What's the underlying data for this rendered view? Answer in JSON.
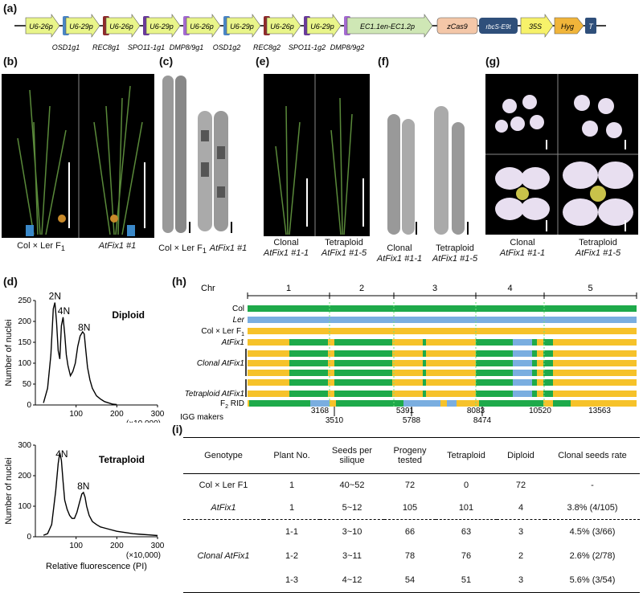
{
  "panel_labels": {
    "a": "(a)",
    "b": "(b)",
    "c": "(c)",
    "d": "(d)",
    "e": "(e)",
    "f": "(f)",
    "g": "(g)",
    "h": "(h)",
    "i": "(i)"
  },
  "construct": {
    "promoters": [
      "U6-26p",
      "U6-29p",
      "U6-26p",
      "U6-29p",
      "U6-26p",
      "U6-29p",
      "U6-26p",
      "U6-29p"
    ],
    "guides": [
      "OSD1g1",
      "REC8g1",
      "SPO11-1g1",
      "DMP8/9g1",
      "OSD1g2",
      "REC8g2",
      "SPO11-1g2",
      "DMP8/9g2"
    ],
    "ec_promoter": "EC1.1en-EC1.2p",
    "zcas9": "zCas9",
    "rbcs": "rbcS-E9t",
    "p35s": "35S",
    "hyg": "Hyg",
    "t": "T",
    "colors": {
      "promoter": "#e9f58a",
      "osd1": "#4a86c5",
      "rec8": "#8e2b2b",
      "spo11": "#6a3a9a",
      "dmp": "#a46ad0",
      "ec": "#cfe7b5",
      "zcas9": "#f4c7a8",
      "rbcs": "#2f4f7a",
      "p35s": "#f7f26a",
      "hyg": "#f1b53a",
      "t": "#2f4f7a"
    }
  },
  "b_caption": {
    "line1": "Col × Ler F",
    "sub": "1",
    "right": "AtFix1 #1"
  },
  "c_caption": {
    "left": "Col × Ler F",
    "sub": "1",
    "right": "AtFix1 #1"
  },
  "e_caption": {
    "left1": "Clonal",
    "left2": "AtFix1 #1-1",
    "right1": "Tetraploid",
    "right2": "AtFix1 #1-5"
  },
  "f_caption": {
    "left1": "Clonal",
    "left2": "AtFix1 #1-1",
    "right1": "Tetraploid",
    "right2": "AtFix1 #1-5"
  },
  "g_caption": {
    "left1": "Clonal",
    "left2": "AtFix1 #1-1",
    "right1": "Tetraploid",
    "right2": "AtFix1 #1-5"
  },
  "chart_data": [
    {
      "type": "line",
      "title": "Diploid",
      "xlabel": "Relative fluorescence (PI)",
      "ylabel": "Number of nuclei",
      "xlim": [
        0,
        300
      ],
      "ylim": [
        0,
        250
      ],
      "x_unit": "(×10,000)",
      "xticks": [
        100,
        200,
        300
      ],
      "yticks": [
        0,
        50,
        100,
        150,
        200,
        250
      ],
      "annotations": [
        {
          "text": "2N",
          "x": 48
        },
        {
          "text": "4N",
          "x": 70
        },
        {
          "text": "8N",
          "x": 120
        }
      ],
      "x": [
        20,
        30,
        38,
        44,
        48,
        52,
        56,
        60,
        64,
        68,
        72,
        76,
        80,
        86,
        92,
        98,
        104,
        110,
        116,
        120,
        124,
        128,
        134,
        140,
        150,
        160,
        170,
        180,
        190,
        200
      ],
      "y": [
        5,
        40,
        120,
        230,
        245,
        200,
        130,
        110,
        190,
        210,
        170,
        120,
        95,
        70,
        80,
        100,
        140,
        165,
        175,
        170,
        130,
        90,
        60,
        40,
        22,
        14,
        8,
        5,
        2,
        1
      ]
    },
    {
      "type": "line",
      "title": "Tetraploid",
      "xlabel": "Relative fluorescence (PI)",
      "ylabel": "Number of nuclei",
      "xlim": [
        0,
        300
      ],
      "ylim": [
        0,
        300
      ],
      "x_unit": "(×10,000)",
      "xticks": [
        100,
        200,
        300
      ],
      "yticks": [
        0,
        100,
        200,
        300
      ],
      "annotations": [
        {
          "text": "4N",
          "x": 65
        },
        {
          "text": "8N",
          "x": 118
        }
      ],
      "x": [
        20,
        30,
        40,
        50,
        56,
        60,
        64,
        68,
        72,
        78,
        84,
        90,
        96,
        102,
        108,
        114,
        118,
        122,
        126,
        132,
        140,
        150,
        160,
        180,
        200,
        220,
        240,
        260,
        280,
        300
      ],
      "y": [
        5,
        10,
        40,
        150,
        240,
        275,
        250,
        180,
        120,
        90,
        70,
        60,
        60,
        80,
        110,
        140,
        145,
        130,
        100,
        70,
        50,
        40,
        32,
        25,
        18,
        14,
        10,
        8,
        6,
        4
      ]
    }
  ],
  "h_panel": {
    "chr_label": "Chr",
    "chromosomes": [
      "1",
      "2",
      "3",
      "4",
      "5"
    ],
    "rows": [
      "Col",
      "Ler",
      "Col × Ler F1",
      "AtFix1",
      "Clonal AtFix1",
      "Tetraploid AtFix1",
      "F2 RID"
    ],
    "row_labels": {
      "col": "Col",
      "ler": "Ler",
      "f1": "Col × Ler F",
      "f1_sub": "1",
      "atfix1": "AtFix1",
      "clonal": "Clonal AtFix1",
      "tetra": "Tetraploid AtFix1",
      "f2": "F",
      "f2_sub": "2",
      "f2_rest": " RID",
      "igg": "IGG makers"
    },
    "igg_markers": [
      "3168",
      "3510",
      "5391",
      "5788",
      "8083",
      "8474",
      "10520",
      "13563"
    ],
    "colors": {
      "col": "#1eaa4a",
      "ler": "#7aaee0",
      "het": "#f6c22a"
    }
  },
  "table_i": {
    "headers": [
      "Genotype",
      "Plant No.",
      "Seeds per silique",
      "Progeny tested",
      "Tetraploid",
      "Diploid",
      "Clonal seeds rate"
    ],
    "rows": [
      [
        "Col × Ler F1",
        "1",
        "40~52",
        "72",
        "0",
        "72",
        "-"
      ],
      [
        "AtFix1",
        "1",
        "5~12",
        "105",
        "101",
        "4",
        "3.8% (4/105)"
      ],
      [
        "",
        "1-1",
        "3~10",
        "66",
        "63",
        "3",
        "4.5% (3/66)"
      ],
      [
        "Clonal AtFix1",
        "1-2",
        "3~11",
        "78",
        "76",
        "2",
        "2.6% (2/78)"
      ],
      [
        "",
        "1-3",
        "4~12",
        "54",
        "51",
        "3",
        "5.6% (3/54)"
      ]
    ]
  }
}
